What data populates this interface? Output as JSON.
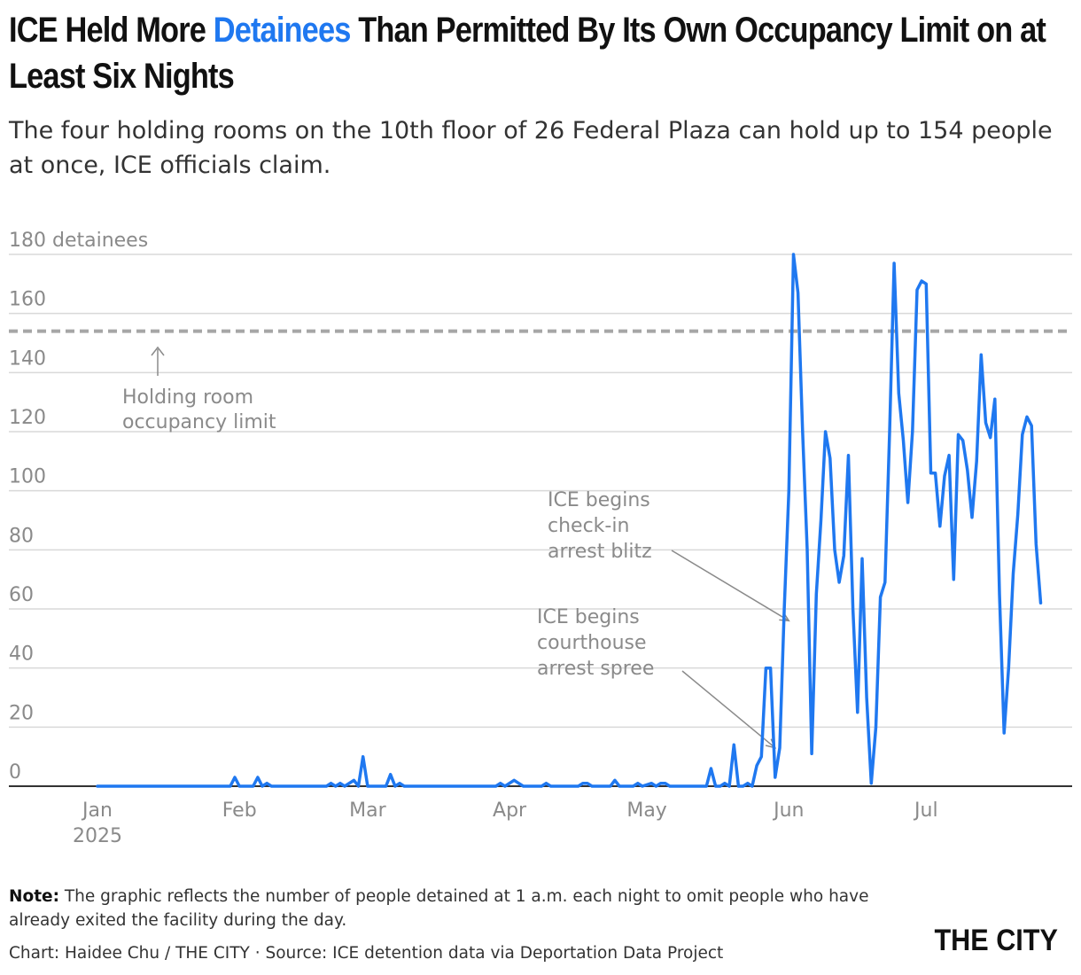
{
  "header": {
    "title_before": "ICE Held More ",
    "title_accent": "Detainees",
    "title_after": " Than Permitted By Its Own Occupancy Limit on at Least Six Nights",
    "subtitle": "The four holding rooms on the 10th floor of 26 Federal Plaza can hold up to 154 people at once, ICE officials claim."
  },
  "colors": {
    "line": "#1f78f0",
    "accent": "#1f78f0",
    "limit_line": "#a6a6a6",
    "grid": "#d9d9d9",
    "axis_text": "#8a8a8a"
  },
  "chart_data": {
    "type": "line",
    "title": "ICE Held More Detainees Than Permitted By Its Own Occupancy Limit on at Least Six Nights",
    "ylabel": "detainees",
    "ylim": [
      0,
      180
    ],
    "y_ticks": [
      {
        "value": 0,
        "label": "0"
      },
      {
        "value": 20,
        "label": "20"
      },
      {
        "value": 40,
        "label": "40"
      },
      {
        "value": 60,
        "label": "60"
      },
      {
        "value": 80,
        "label": "80"
      },
      {
        "value": 100,
        "label": "100"
      },
      {
        "value": 120,
        "label": "120"
      },
      {
        "value": 140,
        "label": "140"
      },
      {
        "value": 160,
        "label": "160"
      },
      {
        "value": 180,
        "label": "180 detainees"
      }
    ],
    "xlim": [
      "2025-01-01",
      "2025-07-29"
    ],
    "x_ticks": [
      {
        "date": "2025-01-01",
        "label": "Jan",
        "label2": "2025"
      },
      {
        "date": "2025-02-01",
        "label": "Feb",
        "label2": ""
      },
      {
        "date": "2025-03-01",
        "label": "Mar",
        "label2": ""
      },
      {
        "date": "2025-04-01",
        "label": "Apr",
        "label2": ""
      },
      {
        "date": "2025-05-01",
        "label": "May",
        "label2": ""
      },
      {
        "date": "2025-06-01",
        "label": "Jun",
        "label2": ""
      },
      {
        "date": "2025-07-01",
        "label": "Jul",
        "label2": ""
      }
    ],
    "grid": true,
    "reference_line": {
      "value": 154,
      "label": "Holding room occupancy limit"
    },
    "annotations": [
      {
        "text": "ICE begins check-in arrest blitz",
        "date": "2025-06-01",
        "value": 56
      },
      {
        "text": "ICE begins courthouse arrest spree",
        "date": "2025-05-29",
        "value": 13
      }
    ],
    "series": [
      {
        "name": "",
        "points": [
          [
            "2025-01-01",
            0
          ],
          [
            "2025-01-20",
            0
          ],
          [
            "2025-01-30",
            0
          ],
          [
            "2025-01-31",
            3
          ],
          [
            "2025-02-01",
            0
          ],
          [
            "2025-02-04",
            0
          ],
          [
            "2025-02-05",
            3
          ],
          [
            "2025-02-06",
            0
          ],
          [
            "2025-02-07",
            1
          ],
          [
            "2025-02-08",
            0
          ],
          [
            "2025-02-20",
            0
          ],
          [
            "2025-02-21",
            1
          ],
          [
            "2025-02-22",
            0
          ],
          [
            "2025-02-23",
            1
          ],
          [
            "2025-02-24",
            0
          ],
          [
            "2025-02-26",
            2
          ],
          [
            "2025-02-27",
            0
          ],
          [
            "2025-02-28",
            10
          ],
          [
            "2025-03-01",
            0
          ],
          [
            "2025-03-05",
            0
          ],
          [
            "2025-03-06",
            4
          ],
          [
            "2025-03-07",
            0
          ],
          [
            "2025-03-08",
            1
          ],
          [
            "2025-03-09",
            0
          ],
          [
            "2025-03-29",
            0
          ],
          [
            "2025-03-30",
            1
          ],
          [
            "2025-03-31",
            0
          ],
          [
            "2025-04-02",
            2
          ],
          [
            "2025-04-03",
            1
          ],
          [
            "2025-04-04",
            0
          ],
          [
            "2025-04-08",
            0
          ],
          [
            "2025-04-09",
            1
          ],
          [
            "2025-04-10",
            0
          ],
          [
            "2025-04-16",
            0
          ],
          [
            "2025-04-17",
            1
          ],
          [
            "2025-04-18",
            1
          ],
          [
            "2025-04-19",
            0
          ],
          [
            "2025-04-23",
            0
          ],
          [
            "2025-04-24",
            2
          ],
          [
            "2025-04-25",
            0
          ],
          [
            "2025-04-28",
            0
          ],
          [
            "2025-04-29",
            1
          ],
          [
            "2025-04-30",
            0
          ],
          [
            "2025-05-02",
            1
          ],
          [
            "2025-05-03",
            0
          ],
          [
            "2025-05-04",
            1
          ],
          [
            "2025-05-05",
            1
          ],
          [
            "2025-05-06",
            0
          ],
          [
            "2025-05-14",
            0
          ],
          [
            "2025-05-15",
            6
          ],
          [
            "2025-05-16",
            0
          ],
          [
            "2025-05-17",
            0
          ],
          [
            "2025-05-18",
            1
          ],
          [
            "2025-05-19",
            0
          ],
          [
            "2025-05-20",
            14
          ],
          [
            "2025-05-21",
            0
          ],
          [
            "2025-05-22",
            0
          ],
          [
            "2025-05-23",
            1
          ],
          [
            "2025-05-24",
            0
          ],
          [
            "2025-05-25",
            7
          ],
          [
            "2025-05-26",
            10
          ],
          [
            "2025-05-27",
            40
          ],
          [
            "2025-05-28",
            40
          ],
          [
            "2025-05-29",
            3
          ],
          [
            "2025-05-30",
            13
          ],
          [
            "2025-05-31",
            60
          ],
          [
            "2025-06-01",
            100
          ],
          [
            "2025-06-02",
            180
          ],
          [
            "2025-06-03",
            167
          ],
          [
            "2025-06-04",
            120
          ],
          [
            "2025-06-05",
            80
          ],
          [
            "2025-06-06",
            11
          ],
          [
            "2025-06-07",
            65
          ],
          [
            "2025-06-08",
            90
          ],
          [
            "2025-06-09",
            120
          ],
          [
            "2025-06-10",
            111
          ],
          [
            "2025-06-11",
            80
          ],
          [
            "2025-06-12",
            69
          ],
          [
            "2025-06-13",
            78
          ],
          [
            "2025-06-14",
            112
          ],
          [
            "2025-06-15",
            60
          ],
          [
            "2025-06-16",
            25
          ],
          [
            "2025-06-17",
            77
          ],
          [
            "2025-06-18",
            30
          ],
          [
            "2025-06-19",
            1
          ],
          [
            "2025-06-20",
            20
          ],
          [
            "2025-06-21",
            64
          ],
          [
            "2025-06-22",
            69
          ],
          [
            "2025-06-23",
            120
          ],
          [
            "2025-06-24",
            177
          ],
          [
            "2025-06-25",
            133
          ],
          [
            "2025-06-26",
            117
          ],
          [
            "2025-06-27",
            96
          ],
          [
            "2025-06-28",
            120
          ],
          [
            "2025-06-29",
            168
          ],
          [
            "2025-06-30",
            171
          ],
          [
            "2025-07-01",
            170
          ],
          [
            "2025-07-02",
            106
          ],
          [
            "2025-07-03",
            106
          ],
          [
            "2025-07-04",
            88
          ],
          [
            "2025-07-05",
            105
          ],
          [
            "2025-07-06",
            112
          ],
          [
            "2025-07-07",
            70
          ],
          [
            "2025-07-08",
            119
          ],
          [
            "2025-07-09",
            117
          ],
          [
            "2025-07-10",
            107
          ],
          [
            "2025-07-11",
            91
          ],
          [
            "2025-07-12",
            110
          ],
          [
            "2025-07-13",
            146
          ],
          [
            "2025-07-14",
            123
          ],
          [
            "2025-07-15",
            118
          ],
          [
            "2025-07-16",
            131
          ],
          [
            "2025-07-17",
            65
          ],
          [
            "2025-07-18",
            18
          ],
          [
            "2025-07-19",
            40
          ],
          [
            "2025-07-20",
            72
          ],
          [
            "2025-07-21",
            92
          ],
          [
            "2025-07-22",
            119
          ],
          [
            "2025-07-23",
            125
          ],
          [
            "2025-07-24",
            122
          ],
          [
            "2025-07-25",
            82
          ],
          [
            "2025-07-26",
            62
          ]
        ]
      }
    ]
  },
  "footer": {
    "note_label": "Note:",
    "note_text": " The graphic reflects the number of people detained at 1 a.m. each night to omit people who have already exited the facility during the day.",
    "credit": "Chart: Haidee Chu / THE CITY · Source: ICE detention data via Deportation Data Project",
    "logo": "THE CITY"
  }
}
